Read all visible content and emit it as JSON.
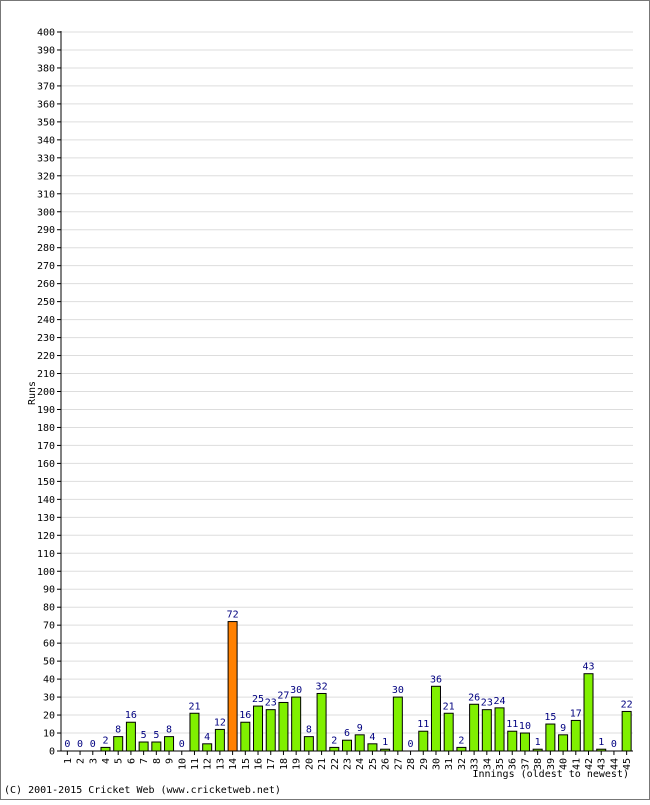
{
  "chart_data": {
    "type": "bar",
    "title": "",
    "xlabel": "Innings (oldest to newest)",
    "ylabel": "Runs",
    "ylim": [
      0,
      400
    ],
    "ytick_step": 10,
    "grid": true,
    "categories": [
      "1",
      "2",
      "3",
      "4",
      "5",
      "6",
      "7",
      "8",
      "9",
      "10",
      "11",
      "12",
      "13",
      "14",
      "15",
      "16",
      "17",
      "18",
      "19",
      "20",
      "21",
      "22",
      "23",
      "24",
      "25",
      "26",
      "27",
      "28",
      "29",
      "30",
      "31",
      "32",
      "33",
      "34",
      "35",
      "36",
      "37",
      "38",
      "39",
      "40",
      "41",
      "42",
      "43",
      "44",
      "45"
    ],
    "values": [
      0,
      0,
      0,
      2,
      8,
      16,
      5,
      5,
      8,
      0,
      21,
      4,
      12,
      72,
      16,
      25,
      23,
      27,
      30,
      8,
      32,
      2,
      6,
      9,
      4,
      1,
      30,
      0,
      11,
      36,
      21,
      2,
      26,
      23,
      24,
      11,
      10,
      1,
      15,
      9,
      17,
      43,
      1,
      0,
      22
    ],
    "highlight_index": 13,
    "colors": {
      "bar": "#80f000",
      "highlight": "#ff8000",
      "label": "#000080",
      "grid": "#dddddd"
    }
  },
  "footer": {
    "copyright": "(C) 2001-2015 Cricket Web (www.cricketweb.net)"
  }
}
